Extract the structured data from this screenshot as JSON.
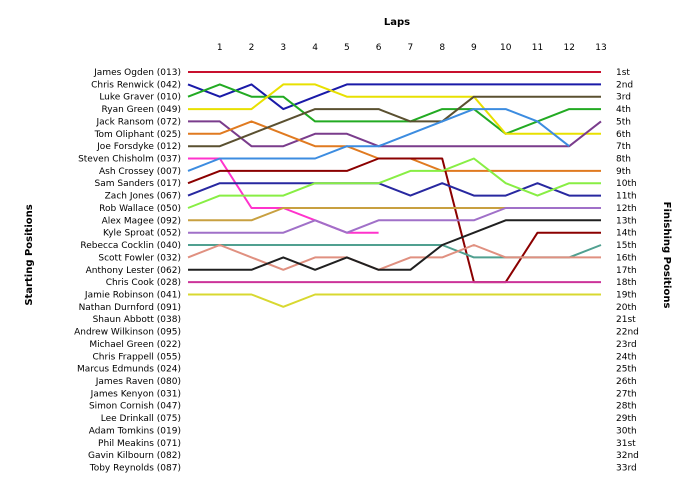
{
  "chart_data": {
    "type": "line",
    "title": "",
    "xlabel": "Laps",
    "ylabel_left": "Starting Positions",
    "ylabel_right": "Finishing Positions",
    "x_ticks": [
      1,
      2,
      3,
      4,
      5,
      6,
      7,
      8,
      9,
      10,
      11,
      12,
      13
    ],
    "ylim": [
      1,
      33
    ],
    "y_inverted": true,
    "grid": false,
    "starting_labels": [
      "James Ogden (013)",
      "Chris Renwick (042)",
      "Luke Graver (010)",
      "Ryan Green (049)",
      "Jack Ransom (072)",
      "Tom Oliphant (025)",
      "Joe Forsdyke (012)",
      "Steven Chisholm (037)",
      "Ash Crossey (007)",
      "Sam Sanders (017)",
      "Zach Jones (067)",
      "Rob Wallace (050)",
      "Alex Magee (092)",
      "Kyle Sproat (052)",
      "Rebecca Cocklin (040)",
      "Scott Fowler (032)",
      "Anthony Lester (062)",
      "Chris Cook (028)",
      "Jamie Robinson (041)",
      "Nathan Durnford (091)",
      "Shaun Abbott (038)",
      "Andrew Wilkinson (095)",
      "Michael Green (022)",
      "Chris Frappell (055)",
      "Marcus Edmunds (024)",
      "James Raven (080)",
      "James Kenyon (031)",
      "Simon Cornish (047)",
      "Lee Drinkall (075)",
      "Adam Tomkins (019)",
      "Phil Meakins (071)",
      "Gavin Kilbourn (082)",
      "Toby Reynolds (087)"
    ],
    "finishing_labels": [
      "1st",
      "2nd",
      "3rd",
      "4th",
      "5th",
      "6th",
      "7th",
      "8th",
      "9th",
      "10th",
      "11th",
      "12th",
      "13th",
      "14th",
      "15th",
      "16th",
      "17th",
      "18th",
      "19th",
      "20th",
      "21st",
      "22nd",
      "23rd",
      "24th",
      "25th",
      "26th",
      "27th",
      "28th",
      "29th",
      "30th",
      "31st",
      "32nd",
      "33rd"
    ],
    "series": [
      {
        "color": "#c8102e",
        "values": [
          1,
          1,
          1,
          1,
          1,
          1,
          1,
          1,
          1,
          1,
          1,
          1,
          1,
          1
        ]
      },
      {
        "color": "#1a1aa8",
        "values": [
          2,
          3,
          2,
          4,
          3,
          2,
          2,
          2,
          2,
          2,
          2,
          2,
          2,
          2
        ]
      },
      {
        "color": "#22aa22",
        "values": [
          3,
          2,
          3,
          3,
          5,
          5,
          5,
          5,
          4,
          4,
          6,
          5,
          4,
          4
        ]
      },
      {
        "color": "#e8e000",
        "values": [
          4,
          4,
          4,
          2,
          2,
          3,
          3,
          3,
          3,
          3,
          6,
          6,
          6,
          6
        ]
      },
      {
        "color": "#7a3c8c",
        "values": [
          5,
          5,
          7,
          7,
          6,
          6,
          7,
          7,
          7,
          7,
          7,
          7,
          7,
          5
        ]
      },
      {
        "color": "#e07a20",
        "values": [
          6,
          6,
          5,
          6,
          7,
          7,
          8,
          8,
          9,
          9,
          9,
          9,
          9,
          9
        ]
      },
      {
        "color": "#5a5030",
        "values": [
          7,
          7,
          6,
          5,
          4,
          4,
          4,
          5,
          5,
          3,
          3,
          3,
          3,
          3
        ]
      },
      {
        "color": "#ff33cc",
        "values": [
          8,
          8,
          12,
          12,
          13,
          14,
          14
        ]
      },
      {
        "color": "#3c8ce0",
        "values": [
          9,
          8,
          8,
          8,
          8,
          7,
          7,
          6,
          5,
          4,
          4,
          5,
          7
        ]
      },
      {
        "color": "#8b0000",
        "values": [
          10,
          9,
          9,
          9,
          9,
          9,
          8,
          8,
          8,
          18,
          18,
          14,
          14,
          14
        ]
      },
      {
        "color": "#2828a0",
        "values": [
          11,
          10,
          10,
          10,
          10,
          10,
          10,
          11,
          10,
          11,
          11,
          10,
          11,
          11
        ]
      },
      {
        "color": "#88ee44",
        "values": [
          12,
          11,
          11,
          11,
          10,
          10,
          10,
          9,
          9,
          8,
          10,
          11,
          10,
          10
        ]
      },
      {
        "color": "#c8a040",
        "values": [
          13,
          13,
          13,
          12,
          12,
          12,
          12,
          12,
          12,
          12,
          12,
          12,
          12,
          12
        ]
      },
      {
        "color": "#a070c8",
        "values": [
          14,
          14,
          14,
          14,
          13,
          14,
          13,
          13,
          13,
          13,
          12,
          12,
          12,
          12
        ]
      },
      {
        "color": "#50a090",
        "values": [
          15,
          15,
          15,
          15,
          15,
          15,
          15,
          15,
          15,
          16,
          16,
          16,
          16,
          15
        ]
      },
      {
        "color": "#e09080",
        "values": [
          16,
          15,
          16,
          17,
          16,
          16,
          17,
          16,
          16,
          15,
          16,
          16,
          16,
          16
        ]
      },
      {
        "color": "#202020",
        "values": [
          17,
          17,
          17,
          16,
          17,
          16,
          17,
          17,
          15,
          14,
          13,
          13,
          13,
          13
        ]
      },
      {
        "color": "#cc3399",
        "values": [
          18,
          18,
          18,
          18,
          18,
          18,
          18,
          18,
          18,
          18,
          18,
          18,
          18,
          18
        ]
      },
      {
        "color": "#d8d830",
        "values": [
          19,
          19,
          19,
          20,
          19,
          19,
          19,
          19,
          19,
          19,
          19,
          19,
          19,
          19
        ]
      }
    ]
  }
}
